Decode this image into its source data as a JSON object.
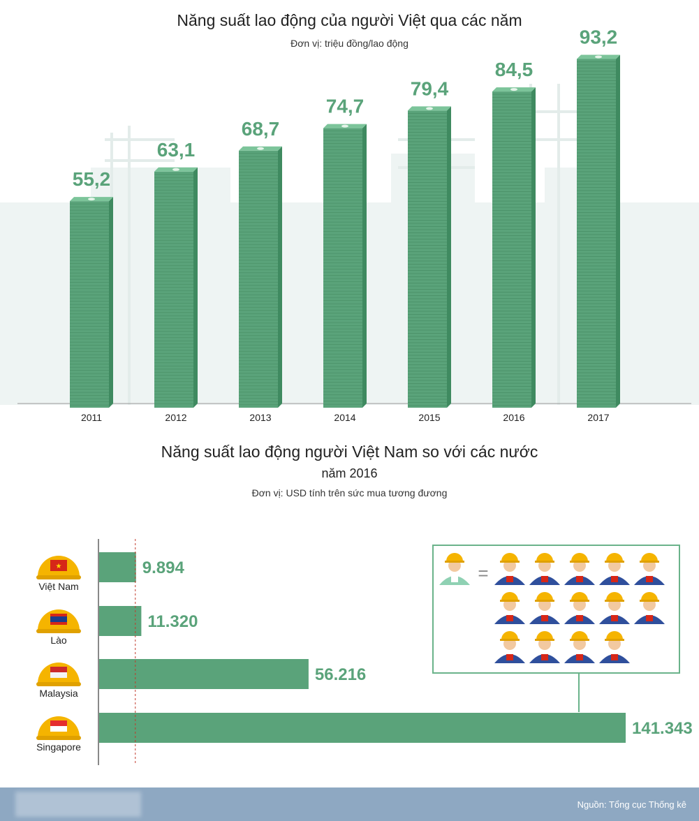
{
  "chart_data": [
    {
      "type": "bar",
      "title": "Năng suất lao động của người Việt qua các năm",
      "unit": "Đơn vị: triệu đồng/lao động",
      "categories": [
        "2011",
        "2012",
        "2013",
        "2014",
        "2015",
        "2016",
        "2017"
      ],
      "values": [
        55.2,
        63.1,
        68.7,
        74.7,
        79.4,
        84.5,
        93.2
      ],
      "value_labels": [
        "55,2",
        "63,1",
        "68,7",
        "74,7",
        "79,4",
        "84,5",
        "93,2"
      ],
      "ylim": [
        0,
        100
      ],
      "xlabel": "",
      "ylabel": "",
      "colors": {
        "bar": "#5aa37a",
        "bar_top": "#7cc49a",
        "label": "#5aa37a"
      }
    },
    {
      "type": "bar",
      "orientation": "horizontal",
      "title": "Năng suất lao động người Việt Nam so với các nước",
      "subtitle": "năm  2016",
      "unit": "Đơn vị: USD tính trên sức mua tương đương",
      "categories": [
        "Việt Nam",
        "Lào",
        "Malaysia",
        "Singapore"
      ],
      "values": [
        9894,
        11320,
        56216,
        141343
      ],
      "value_labels": [
        "9.894",
        "11.320",
        "56.216",
        "141.343"
      ],
      "xlim": [
        0,
        141343
      ],
      "reference_line": 9894,
      "comparison": {
        "singapore_equals_vietnam_workers": 14
      },
      "colors": {
        "bar": "#5aa37a",
        "reference": "#c0392b",
        "helmet": "#f5b400"
      }
    }
  ],
  "footer": {
    "source": "Nguồn: Tổng cục Thống kê"
  }
}
